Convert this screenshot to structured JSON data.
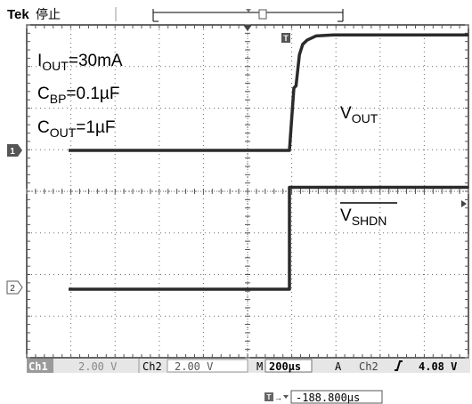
{
  "header": {
    "brand": "Tek",
    "state": "停止"
  },
  "annotations": {
    "iout": {
      "main": "I",
      "sub": "OUT",
      "tail": "=30mA"
    },
    "cbp": {
      "main": "C",
      "sub": "BP",
      "tail": "=0.1µF"
    },
    "cout": {
      "main": "C",
      "sub": "OUT",
      "tail": "=1µF"
    },
    "vout": {
      "main": "V",
      "sub": "OUT"
    },
    "vshdn": {
      "main": "V",
      "sub": "SHDN"
    }
  },
  "channels": {
    "ch1": {
      "marker": "1",
      "label": "Ch1",
      "scale": "2.00 V"
    },
    "ch2": {
      "marker": "2",
      "label": "Ch2",
      "scale": "2.00 V"
    }
  },
  "timebase": {
    "label": "M",
    "value": "200µs"
  },
  "trigger": {
    "mode": "A",
    "source": "Ch2",
    "slope": "rising",
    "level": "4.08 V",
    "marker": "T"
  },
  "position": {
    "value": "-188.800µs"
  },
  "colors": {
    "trace": "#2b2b2b",
    "grid": "#6b6b6b",
    "header_fill": "#c8c8c8"
  },
  "chart_data": {
    "type": "line",
    "x_divisions": 10,
    "y_divisions": 8,
    "x_range_us": [
      -1000,
      1000
    ],
    "grid": true,
    "series": [
      {
        "name": "VOUT",
        "channel": "Ch1",
        "x_us": [
          -1000,
          0,
          10,
          20,
          30,
          45,
          60,
          80,
          120,
          200,
          400,
          1000
        ],
        "y_V": [
          0,
          0,
          1.5,
          3.0,
          3.1,
          4.6,
          5.1,
          5.3,
          5.5,
          5.55,
          5.55,
          5.55
        ]
      },
      {
        "name": "VSHDN",
        "channel": "Ch2",
        "x_us": [
          -1000,
          0,
          0,
          1000
        ],
        "y_V": [
          0,
          0,
          4.9,
          4.9
        ]
      }
    ]
  }
}
